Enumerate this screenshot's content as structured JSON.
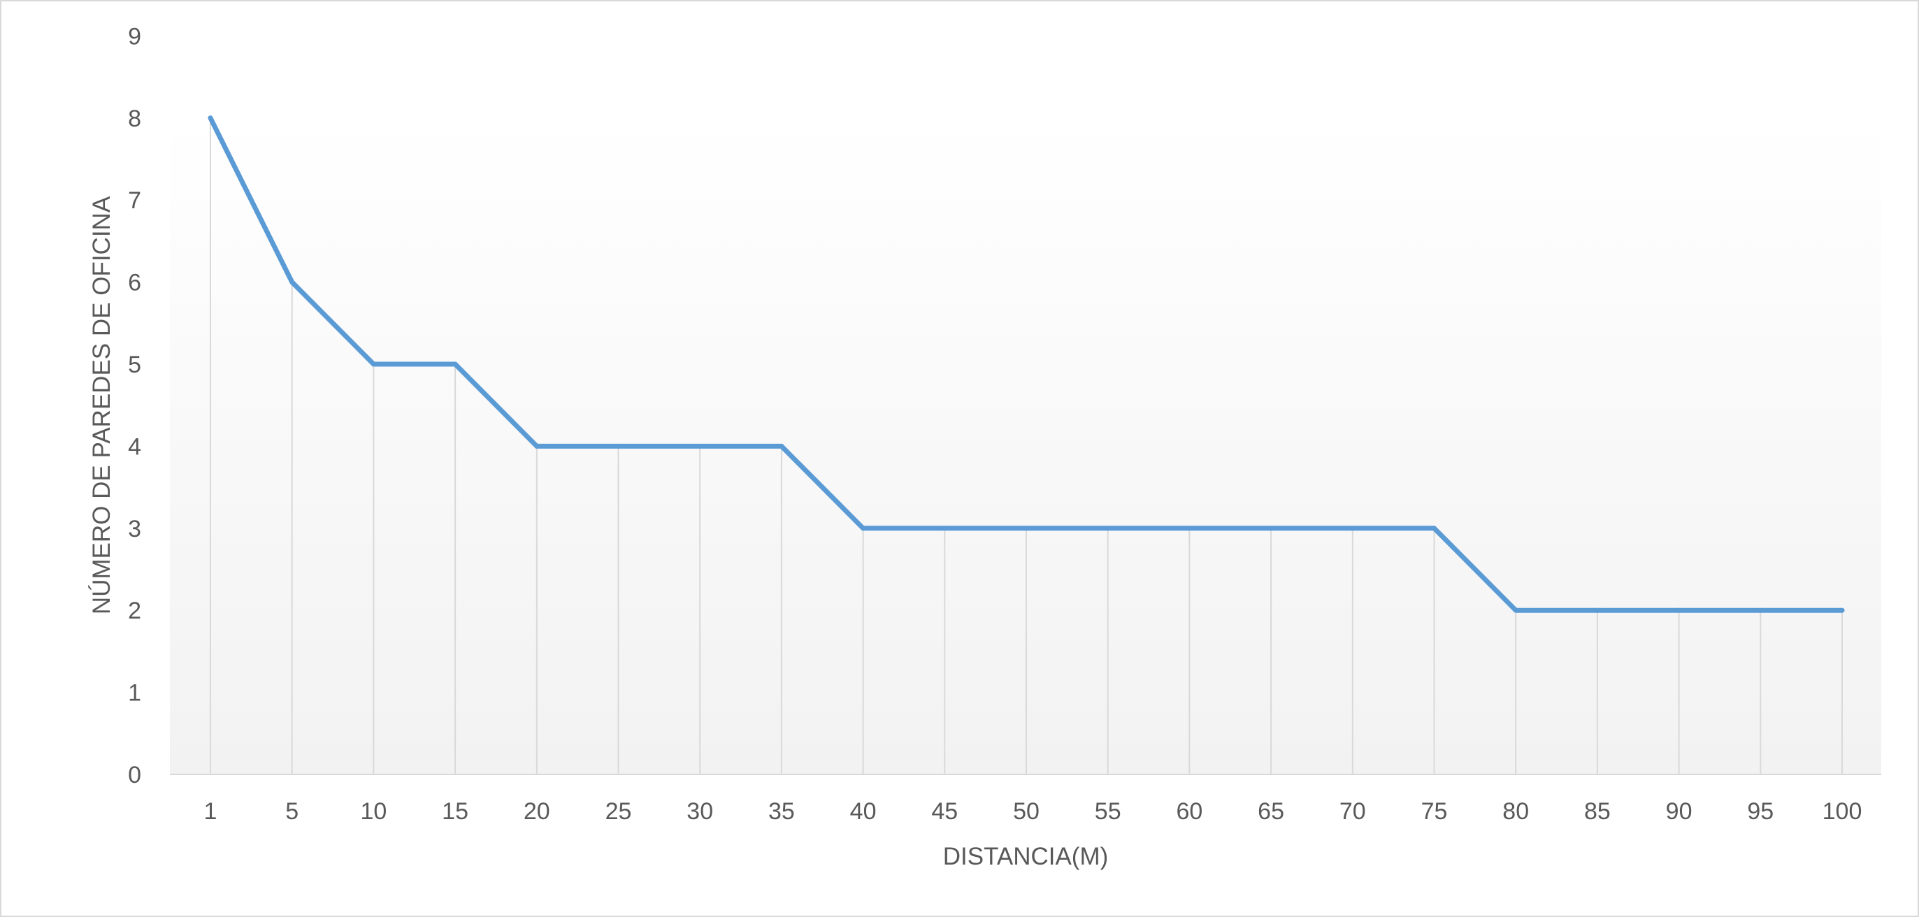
{
  "chart_data": {
    "type": "line",
    "title": "",
    "xlabel": "DISTANCIA(M)",
    "ylabel": "NÚMERO DE PAREDES DE OFICINA",
    "categories": [
      "1",
      "5",
      "10",
      "15",
      "20",
      "25",
      "30",
      "35",
      "40",
      "45",
      "50",
      "55",
      "60",
      "65",
      "70",
      "75",
      "80",
      "85",
      "90",
      "95",
      "100"
    ],
    "series": [
      {
        "values": [
          8,
          6,
          5,
          5,
          4,
          4,
          4,
          4,
          3,
          3,
          3,
          3,
          3,
          3,
          3,
          3,
          2,
          2,
          2,
          2,
          2
        ]
      }
    ],
    "ylim": [
      0,
      9
    ],
    "yticks": [
      0,
      1,
      2,
      3,
      4,
      5,
      6,
      7,
      8,
      9
    ],
    "grid": "vertical drop lines",
    "legend": "none",
    "colors": {
      "line": "#5b9bd5",
      "droplines": "#d9d9d9",
      "axis": "#d9d9d9",
      "text": "#595959",
      "plot_gradient_top": "#ffffff",
      "plot_gradient_bottom": "#f2f2f2"
    }
  }
}
